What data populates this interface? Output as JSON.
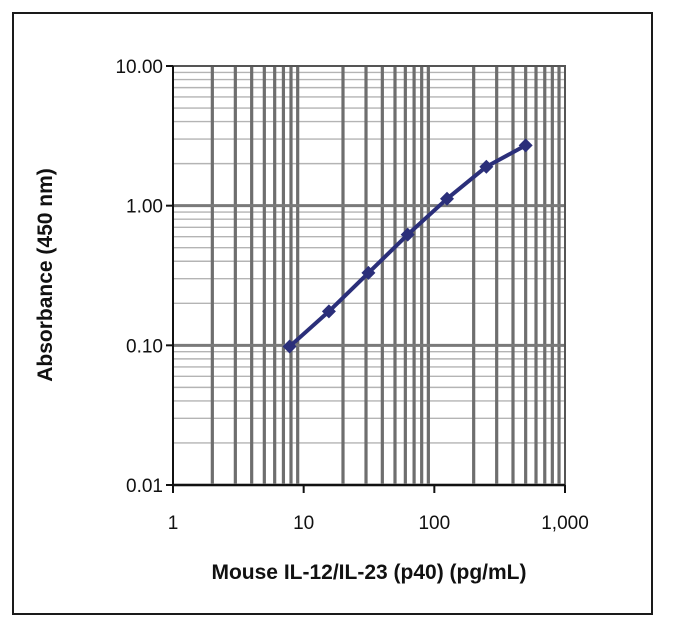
{
  "chart_data": {
    "type": "line",
    "title": "",
    "xlabel": "Mouse IL-12/IL-23 (p40) (pg/mL)",
    "ylabel": "Absorbance (450 nm)",
    "x_scale": "log",
    "y_scale": "log",
    "xlim": [
      1,
      1000
    ],
    "ylim": [
      0.01,
      10
    ],
    "x_ticks": [
      "1",
      "10",
      "100",
      "1,000"
    ],
    "y_ticks": [
      "0.01",
      "0.10",
      "1.00",
      "10.00"
    ],
    "grid": true,
    "series": [
      {
        "x": [
          7.8,
          15.6,
          31.3,
          62.5,
          125,
          250,
          500
        ],
        "y": [
          0.098,
          0.175,
          0.33,
          0.62,
          1.12,
          1.9,
          2.7
        ],
        "color": "#2b2f7a",
        "marker": "diamond"
      }
    ]
  }
}
